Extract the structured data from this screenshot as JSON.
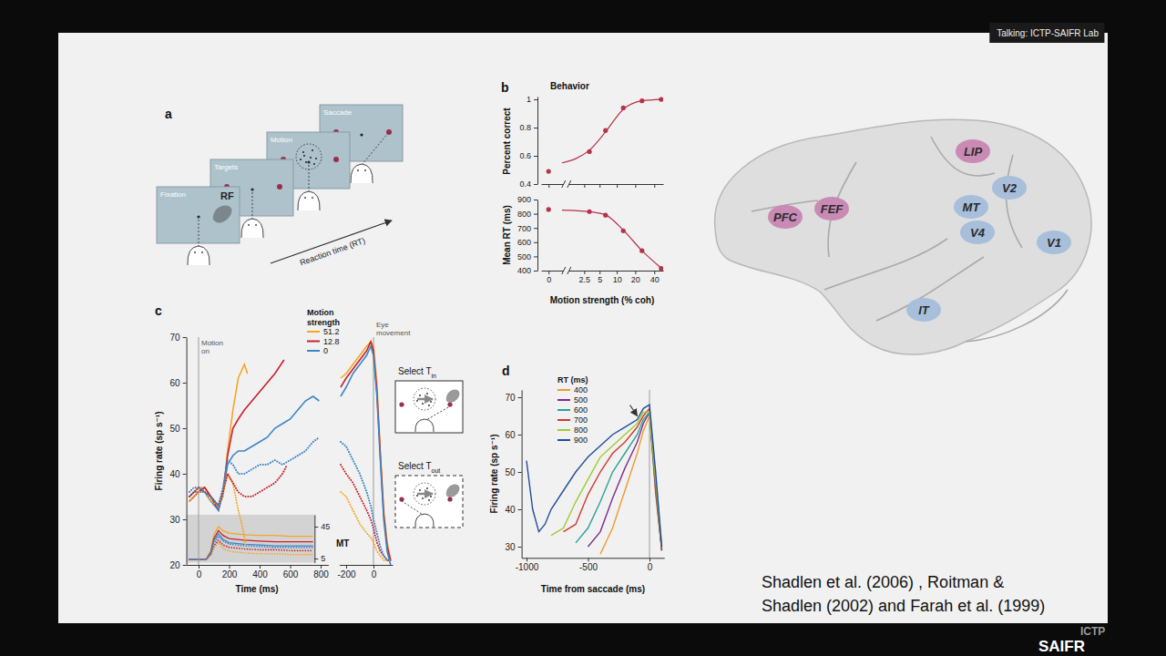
{
  "header": {
    "speaker": "Talking: ICTP-SAIFR Lab"
  },
  "logo": {
    "top": "ICTP",
    "bottom": "SAIFR"
  },
  "panel_a": {
    "letter": "a",
    "screens": [
      "Fixation",
      "Targets",
      "Motion",
      "Saccade"
    ],
    "rf": "RF",
    "arrow_label": "Reaction time (RT)"
  },
  "panel_c_insets": [
    {
      "label": "Select T",
      "subscript": "in",
      "line_style": "solid"
    },
    {
      "label": "Select T",
      "subscript": "out",
      "line_style": "dashed"
    }
  ],
  "chart_data": [
    {
      "type": "line",
      "letter": "b",
      "title": "Behavior",
      "ylabel": "Percent correct",
      "xlim": [
        -0.3,
        55
      ],
      "xticks": [
        0,
        2.5,
        5,
        10,
        20,
        40
      ],
      "ylim": [
        0.4,
        1.02
      ],
      "yticks": [
        0.4,
        0.6,
        0.8,
        1
      ],
      "log": "x",
      "tick_labels": "y",
      "series": [
        {
          "color": "#b5334a",
          "marker": "circle",
          "line_style": "none",
          "x": [
            0,
            3.2,
            6.4,
            12.8,
            25.6,
            51.2
          ],
          "values": [
            0.49,
            0.63,
            0.78,
            0.94,
            0.99,
            1.0
          ]
        },
        {
          "color": "#b5334a",
          "line_style": "solid",
          "x": [
            0.6,
            1.6,
            3.2,
            6.4,
            12.8,
            25.6,
            51.2
          ],
          "values": [
            0.55,
            0.58,
            0.64,
            0.77,
            0.93,
            0.99,
            1.0
          ]
        }
      ]
    },
    {
      "type": "line",
      "ylabel": "Mean RT (ms)",
      "xlabel": "Motion strength (% coh)",
      "xlim": [
        -0.3,
        55
      ],
      "xticks": [
        0,
        2.5,
        5,
        10,
        20,
        40
      ],
      "ylim": [
        400,
        900
      ],
      "yticks": [
        400,
        500,
        600,
        700,
        800,
        900
      ],
      "log": "x",
      "series": [
        {
          "color": "#b5334a",
          "marker": "circle",
          "line_style": "none",
          "x": [
            0,
            3.2,
            6.4,
            12.8,
            25.6,
            51.2
          ],
          "values": [
            830,
            815,
            790,
            680,
            540,
            415
          ]
        },
        {
          "color": "#b5334a",
          "line_style": "solid",
          "x": [
            0.6,
            1.6,
            3.2,
            6.4,
            12.8,
            25.6,
            51.2
          ],
          "values": [
            825,
            822,
            815,
            792,
            685,
            540,
            418
          ]
        }
      ]
    },
    {
      "type": "line",
      "letter": "c",
      "xlabel": "Time (ms)",
      "ylabel": "Firing rate (sp s⁻¹)",
      "xlim": [
        -80,
        850
      ],
      "xticks": [
        0,
        200,
        400,
        600,
        800
      ],
      "ylim": [
        20,
        70
      ],
      "yticks": [
        20,
        30,
        40,
        50,
        60,
        70
      ],
      "vline": {
        "x": 0,
        "label": "Motion on"
      },
      "legend": "top-right",
      "legend_title": "Motion strength",
      "series": [
        {
          "name": "51.2",
          "color": "#f5a623",
          "line_style": "solid",
          "x": [
            -60,
            -30,
            0,
            40,
            80,
            130,
            160,
            190,
            225,
            260,
            300,
            320
          ],
          "values": [
            35,
            36,
            37,
            37,
            35,
            33,
            35,
            45,
            54,
            61,
            64,
            62
          ]
        },
        {
          "name": "12.8",
          "color": "#c8202f",
          "line_style": "solid",
          "x": [
            -60,
            -30,
            0,
            40,
            80,
            130,
            160,
            190,
            225,
            260,
            300,
            350,
            400,
            450,
            500,
            540,
            560
          ],
          "values": [
            34,
            35,
            36,
            37,
            35,
            32,
            36,
            44,
            50,
            52,
            54,
            56,
            58,
            60,
            62,
            64,
            65
          ]
        },
        {
          "name": "0",
          "color": "#3b86c8",
          "line_style": "solid",
          "x": [
            -60,
            -30,
            0,
            40,
            80,
            130,
            160,
            190,
            225,
            260,
            300,
            350,
            400,
            450,
            500,
            550,
            600,
            650,
            700,
            750,
            790
          ],
          "values": [
            35,
            36,
            36,
            36,
            34,
            32,
            36,
            42,
            44,
            45,
            45,
            46,
            47,
            48,
            50,
            51,
            52,
            54,
            56,
            57,
            56
          ]
        },
        {
          "color": "#f5a623",
          "line_style": "dotted",
          "x": [
            -60,
            -30,
            0,
            40,
            80,
            130,
            160,
            190,
            225,
            260,
            290,
            310
          ],
          "values": [
            34,
            35,
            36,
            36,
            34,
            33,
            36,
            40,
            38,
            32,
            28,
            24
          ]
        },
        {
          "color": "#c8202f",
          "line_style": "dotted",
          "x": [
            -60,
            -30,
            0,
            40,
            80,
            130,
            160,
            190,
            225,
            260,
            300,
            350,
            400,
            450,
            500,
            550,
            580
          ],
          "values": [
            35,
            36,
            37,
            36,
            35,
            33,
            36,
            40,
            38,
            36,
            35,
            35,
            36,
            37,
            38,
            40,
            42
          ]
        },
        {
          "color": "#3b86c8",
          "line_style": "dotted",
          "x": [
            -60,
            -30,
            0,
            40,
            80,
            130,
            160,
            190,
            225,
            260,
            300,
            350,
            400,
            450,
            500,
            550,
            600,
            650,
            700,
            750,
            790
          ],
          "values": [
            36,
            37,
            37,
            36,
            35,
            33,
            37,
            43,
            42,
            40,
            40,
            41,
            42,
            42,
            43,
            42,
            43,
            44,
            45,
            47,
            48
          ]
        }
      ]
    },
    {
      "type": "line",
      "xlim": [
        -250,
        140
      ],
      "xticks": [
        -200,
        0
      ],
      "ylim": [
        20,
        70
      ],
      "tick_labels": "x",
      "vline": {
        "x": 0,
        "label": "Eye movement"
      },
      "series": [
        {
          "color": "#f5a623",
          "line_style": "solid",
          "x": [
            -240,
            -200,
            -150,
            -100,
            -50,
            -20,
            0,
            25,
            50,
            75,
            100,
            125
          ],
          "values": [
            61,
            62,
            64,
            66,
            68,
            69,
            68,
            60,
            45,
            32,
            25,
            21
          ]
        },
        {
          "color": "#c8202f",
          "line_style": "solid",
          "x": [
            -240,
            -200,
            -150,
            -100,
            -50,
            -20,
            0,
            25,
            50,
            75,
            100,
            125
          ],
          "values": [
            59,
            61,
            63,
            65,
            67,
            69,
            67,
            58,
            44,
            31,
            24,
            21
          ]
        },
        {
          "color": "#3b86c8",
          "line_style": "solid",
          "x": [
            -240,
            -200,
            -150,
            -100,
            -50,
            -20,
            0,
            25,
            50,
            75,
            100,
            125
          ],
          "values": [
            57,
            59,
            62,
            64,
            66,
            68,
            66,
            57,
            43,
            30,
            23,
            20
          ]
        },
        {
          "color": "#f5a623",
          "line_style": "dotted",
          "x": [
            -240,
            -200,
            -150,
            -100,
            -50,
            -20,
            0,
            25,
            50,
            75,
            100,
            125
          ],
          "values": [
            36,
            35,
            32,
            29,
            27,
            26,
            25,
            23,
            22,
            21,
            21,
            21
          ]
        },
        {
          "color": "#c8202f",
          "line_style": "dotted",
          "x": [
            -240,
            -200,
            -150,
            -100,
            -50,
            -20,
            0,
            25,
            50,
            75,
            100,
            125
          ],
          "values": [
            42,
            40,
            38,
            35,
            32,
            30,
            28,
            25,
            23,
            22,
            21,
            21
          ]
        },
        {
          "color": "#3b86c8",
          "line_style": "dotted",
          "x": [
            -240,
            -200,
            -150,
            -100,
            -50,
            -20,
            0,
            25,
            50,
            75,
            100,
            125
          ],
          "values": [
            47,
            46,
            43,
            40,
            36,
            33,
            30,
            27,
            24,
            22,
            21,
            21
          ]
        }
      ]
    },
    {
      "type": "line",
      "ylabel": "MT",
      "xlim": [
        -80,
        760
      ],
      "ylim": [
        0,
        60
      ],
      "yticks": [
        5,
        45
      ],
      "tick_labels": "y",
      "series": [
        {
          "color": "#f5a623",
          "line_style": "solid",
          "x": [
            -60,
            0,
            50,
            80,
            100,
            130,
            160,
            200,
            300,
            400,
            500,
            600,
            700,
            750
          ],
          "values": [
            4,
            4,
            4,
            15,
            35,
            45,
            40,
            37,
            35,
            34,
            34,
            33,
            33,
            33
          ]
        },
        {
          "color": "#c8202f",
          "line_style": "solid",
          "x": [
            -60,
            0,
            50,
            80,
            100,
            130,
            160,
            200,
            300,
            400,
            500,
            600,
            700,
            750
          ],
          "values": [
            4,
            4,
            4,
            13,
            30,
            40,
            34,
            30,
            28,
            27,
            26,
            26,
            26,
            26
          ]
        },
        {
          "color": "#3b86c8",
          "line_style": "solid",
          "x": [
            -60,
            0,
            50,
            80,
            100,
            130,
            160,
            200,
            300,
            400,
            500,
            600,
            700,
            750
          ],
          "values": [
            4,
            4,
            4,
            12,
            27,
            36,
            29,
            25,
            23,
            22,
            21,
            21,
            21,
            21
          ]
        },
        {
          "color": "#f5a623",
          "line_style": "dotted",
          "x": [
            -60,
            0,
            50,
            80,
            100,
            130,
            160,
            200,
            300,
            400,
            500,
            600,
            700,
            750
          ],
          "values": [
            4,
            4,
            4,
            9,
            18,
            25,
            18,
            14,
            12,
            11,
            11,
            10,
            10,
            10
          ]
        },
        {
          "color": "#c8202f",
          "line_style": "dotted",
          "x": [
            -60,
            0,
            50,
            80,
            100,
            130,
            160,
            200,
            300,
            400,
            500,
            600,
            700,
            750
          ],
          "values": [
            4,
            4,
            4,
            10,
            21,
            28,
            22,
            19,
            17,
            16,
            16,
            15,
            15,
            15
          ]
        },
        {
          "color": "#3b86c8",
          "line_style": "dotted",
          "x": [
            -60,
            0,
            50,
            80,
            100,
            130,
            160,
            200,
            300,
            400,
            500,
            600,
            700,
            750
          ],
          "values": [
            4,
            4,
            4,
            11,
            24,
            33,
            27,
            23,
            21,
            20,
            19,
            19,
            19,
            19
          ]
        }
      ]
    },
    {
      "type": "line",
      "letter": "d",
      "xlabel": "Time from saccade (ms)",
      "ylabel": "Firing rate (sp s⁻¹)",
      "xlim": [
        -1040,
        120
      ],
      "xticks": [
        -1000,
        -500,
        0
      ],
      "ylim": [
        27,
        72
      ],
      "yticks": [
        30,
        40,
        50,
        60,
        70
      ],
      "vline": {
        "x": 0
      },
      "legend": "top-left",
      "legend_title": "RT (ms)",
      "arrow": {
        "x": -100,
        "y": 65
      },
      "series": [
        {
          "name": "400",
          "color": "#f09a2a",
          "line_style": "solid",
          "x": [
            -400,
            -300,
            -200,
            -100,
            -50,
            0,
            50,
            100
          ],
          "values": [
            28,
            35,
            45,
            55,
            61,
            65,
            44,
            29
          ]
        },
        {
          "name": "500",
          "color": "#7b2d8e",
          "line_style": "solid",
          "x": [
            -500,
            -400,
            -300,
            -200,
            -100,
            -50,
            0,
            50,
            100
          ],
          "values": [
            30,
            34,
            43,
            51,
            58,
            63,
            66,
            45,
            29
          ]
        },
        {
          "name": "600",
          "color": "#2aa198",
          "line_style": "solid",
          "x": [
            -600,
            -500,
            -400,
            -300,
            -200,
            -100,
            -50,
            0,
            50,
            100
          ],
          "values": [
            31,
            35,
            42,
            50,
            55,
            60,
            64,
            66,
            46,
            29
          ]
        },
        {
          "name": "700",
          "color": "#d03a2a",
          "line_style": "solid",
          "x": [
            -700,
            -600,
            -500,
            -400,
            -300,
            -200,
            -100,
            -50,
            0,
            50,
            100
          ],
          "values": [
            34,
            36,
            44,
            50,
            55,
            58,
            62,
            65,
            67,
            47,
            29
          ]
        },
        {
          "name": "800",
          "color": "#9acd32",
          "line_style": "solid",
          "x": [
            -800,
            -700,
            -600,
            -500,
            -400,
            -300,
            -200,
            -100,
            -50,
            0,
            50,
            100
          ],
          "values": [
            33,
            35,
            42,
            48,
            54,
            57,
            60,
            63,
            66,
            66,
            48,
            30
          ]
        },
        {
          "name": "900",
          "color": "#1f4e99",
          "line_style": "solid",
          "x": [
            -1000,
            -950,
            -900,
            -850,
            -800,
            -700,
            -600,
            -500,
            -400,
            -300,
            -200,
            -100,
            -50,
            0,
            50,
            100
          ],
          "values": [
            53,
            40,
            34,
            36,
            40,
            45,
            50,
            54,
            57,
            60,
            62,
            64,
            67,
            68,
            50,
            30
          ]
        }
      ]
    }
  ],
  "brain": {
    "regions": [
      {
        "label": "PFC",
        "color": "#c98bb5"
      },
      {
        "label": "FEF",
        "color": "#c98bb5"
      },
      {
        "label": "LIP",
        "color": "#c98bb5"
      },
      {
        "label": "MT",
        "color": "#a8bfdc"
      },
      {
        "label": "V2",
        "color": "#a8bfdc"
      },
      {
        "label": "V4",
        "color": "#a8bfdc"
      },
      {
        "label": "V1",
        "color": "#a8bfdc"
      },
      {
        "label": "IT",
        "color": "#a8bfdc"
      }
    ]
  },
  "citation": [
    "Shadlen et al. (2006) , Roitman &",
    "Shadlen (2002) and Farah et al. (1999)"
  ]
}
